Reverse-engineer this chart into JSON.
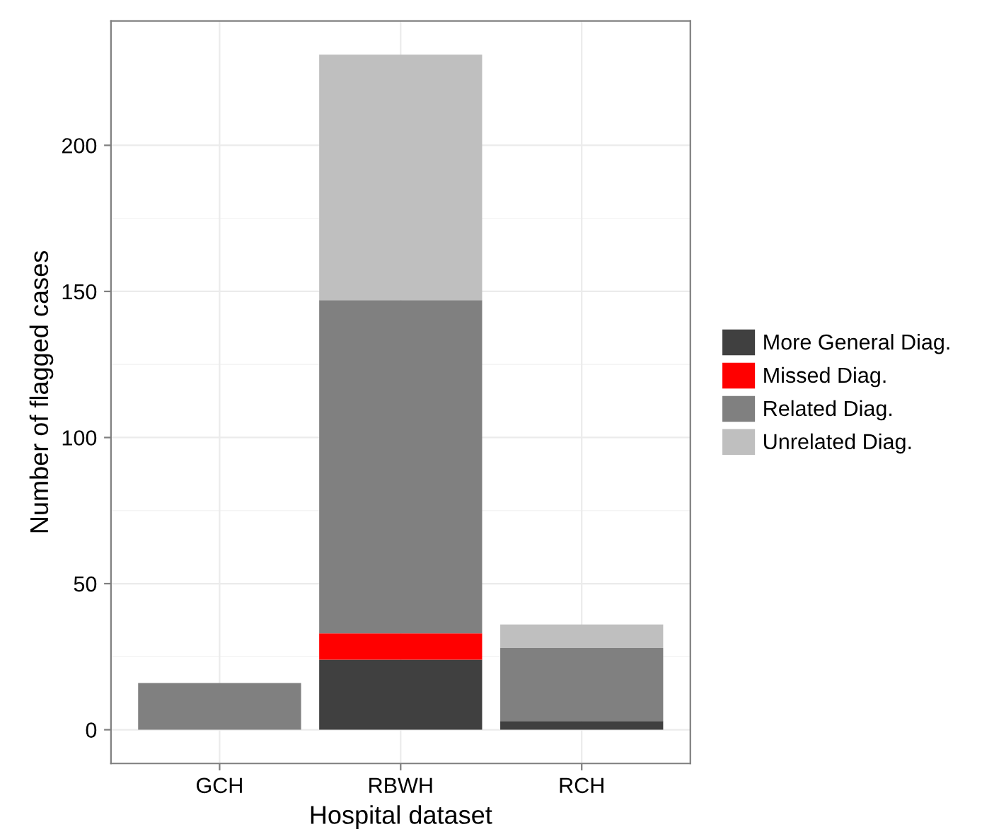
{
  "chart_data": {
    "type": "bar",
    "stacked": true,
    "xlabel": "Hospital dataset",
    "ylabel": "Number of flagged cases",
    "categories": [
      "GCH",
      "RBWH",
      "RCH"
    ],
    "series": [
      {
        "name": "More General Diag.",
        "color": "#404040",
        "values": [
          0,
          24,
          3
        ]
      },
      {
        "name": "Missed Diag.",
        "color": "#ff0000",
        "values": [
          0,
          9,
          0
        ]
      },
      {
        "name": "Related Diag.",
        "color": "#808080",
        "values": [
          16,
          114,
          25
        ]
      },
      {
        "name": "Unrelated Diag.",
        "color": "#bfbfbf",
        "values": [
          0,
          84,
          8
        ]
      }
    ],
    "ylim": [
      -11.55,
      242.55
    ],
    "yticks": [
      0,
      50,
      100,
      150,
      200
    ],
    "grid": true,
    "legend": "right"
  }
}
